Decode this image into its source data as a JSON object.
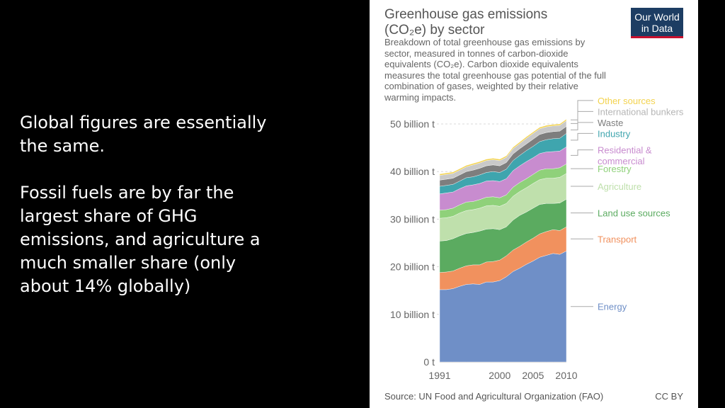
{
  "slide": {
    "paragraphs": [
      "Global figures are essentially the same.",
      "Fossil fuels are by far the largest share of GHG emissions, and agriculture a much smaller share (only about 14% globally)"
    ]
  },
  "card": {
    "title_line1": "Greenhouse gas emissions",
    "title_line2": "(CO₂e) by sector",
    "subtitle": "Breakdown of total greenhouse gas emissions by sector, measured in tonnes of carbon-dioxide equivalents (CO₂e). Carbon dioxide equivalents measures the total greenhouse gas potential of the full combination of gases, weighted by their relative warming impacts.",
    "logo_line1": "Our World",
    "logo_line2": "in Data",
    "source": "Source: UN Food and Agricultural Organization (FAO)",
    "license": "CC BY"
  },
  "chart_data": {
    "type": "area",
    "stacked": true,
    "x": [
      1991,
      1992,
      1993,
      1994,
      1995,
      1996,
      1997,
      1998,
      1999,
      2000,
      2001,
      2002,
      2003,
      2004,
      2005,
      2006,
      2007,
      2008,
      2009,
      2010
    ],
    "xticks": [
      1991,
      2000,
      2005,
      2010
    ],
    "yticks": [
      0,
      10,
      20,
      30,
      40,
      50
    ],
    "ytick_labels": [
      "0 t",
      "10 billion t",
      "20 billion t",
      "30 billion t",
      "40 billion t",
      "50 billion t"
    ],
    "ylim": [
      0,
      50
    ],
    "unit": "billion t",
    "grid": "horizontal dashed",
    "legend": "right",
    "series": [
      {
        "name": "Energy",
        "color": "#6f8fc7",
        "values": [
          15.2,
          15.2,
          15.4,
          15.9,
          16.3,
          16.4,
          16.3,
          16.8,
          16.8,
          17.1,
          17.9,
          19.0,
          19.7,
          20.5,
          21.2,
          22.0,
          22.4,
          22.8,
          22.6,
          23.3
        ]
      },
      {
        "name": "Transport",
        "color": "#f1915e",
        "values": [
          3.6,
          3.7,
          3.7,
          3.8,
          3.9,
          4.0,
          4.1,
          4.2,
          4.3,
          4.3,
          4.4,
          4.5,
          4.6,
          4.7,
          4.8,
          4.9,
          5.0,
          5.0,
          5.0,
          5.1
        ]
      },
      {
        "name": "Land use sources",
        "color": "#5bab60",
        "values": [
          6.6,
          6.6,
          6.8,
          6.8,
          6.8,
          6.8,
          7.1,
          6.9,
          6.9,
          6.4,
          6.1,
          6.3,
          6.5,
          6.3,
          6.3,
          6.2,
          5.9,
          5.5,
          5.8,
          5.8
        ]
      },
      {
        "name": "Agriculture",
        "color": "#bfe0ac",
        "values": [
          4.8,
          4.8,
          4.7,
          4.8,
          4.8,
          4.8,
          4.8,
          4.9,
          4.9,
          4.9,
          4.9,
          5.0,
          5.0,
          5.1,
          5.2,
          5.2,
          5.3,
          5.3,
          5.4,
          5.4
        ]
      },
      {
        "name": "Forestry",
        "color": "#8fd17a",
        "values": [
          1.7,
          1.7,
          1.7,
          1.7,
          1.8,
          1.7,
          1.8,
          1.8,
          1.8,
          1.8,
          1.8,
          1.9,
          1.9,
          1.9,
          1.9,
          2.0,
          2.0,
          2.0,
          2.0,
          2.0
        ]
      },
      {
        "name": "Residential & commercial",
        "color": "#c88ccf",
        "values": [
          3.4,
          3.5,
          3.4,
          3.4,
          3.4,
          3.5,
          3.4,
          3.4,
          3.4,
          3.4,
          3.4,
          3.5,
          3.5,
          3.6,
          3.5,
          3.5,
          3.5,
          3.6,
          3.5,
          3.6
        ]
      },
      {
        "name": "Industry",
        "color": "#3fa5ae",
        "values": [
          1.6,
          1.6,
          1.6,
          1.6,
          1.7,
          1.7,
          1.8,
          1.8,
          1.9,
          1.9,
          2.0,
          2.1,
          2.2,
          2.3,
          2.4,
          2.5,
          2.6,
          2.7,
          2.7,
          2.8
        ]
      },
      {
        "name": "Waste",
        "color": "#7e7e7e",
        "values": [
          1.3,
          1.3,
          1.3,
          1.3,
          1.3,
          1.4,
          1.4,
          1.4,
          1.4,
          1.4,
          1.4,
          1.4,
          1.4,
          1.4,
          1.5,
          1.5,
          1.5,
          1.5,
          1.5,
          1.5
        ]
      },
      {
        "name": "International bunkers",
        "color": "#c9c9c9",
        "values": [
          1.0,
          1.0,
          1.0,
          1.0,
          1.0,
          1.1,
          1.1,
          1.1,
          1.1,
          1.1,
          1.1,
          1.1,
          1.1,
          1.2,
          1.2,
          1.2,
          1.2,
          1.2,
          1.2,
          1.2
        ]
      },
      {
        "name": "Other sources",
        "color": "#f3d34f",
        "values": [
          0.3,
          0.3,
          0.3,
          0.3,
          0.3,
          0.3,
          0.3,
          0.3,
          0.3,
          0.3,
          0.3,
          0.3,
          0.3,
          0.3,
          0.3,
          0.3,
          0.3,
          0.3,
          0.3,
          0.3
        ]
      }
    ]
  }
}
